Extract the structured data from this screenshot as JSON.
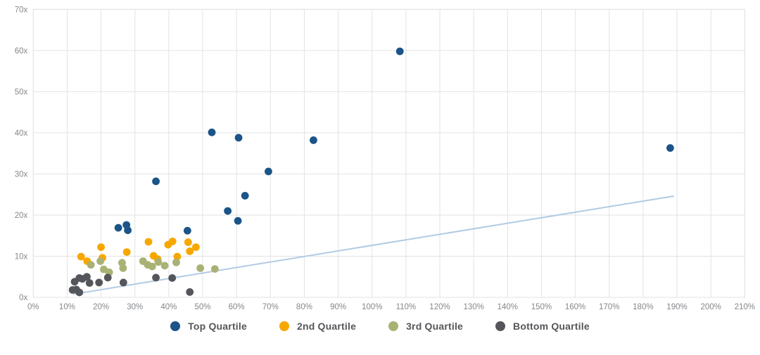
{
  "chart_data": {
    "type": "scatter",
    "title": "",
    "xlabel": "",
    "ylabel": "",
    "grid": true,
    "legend_position": "bottom",
    "x_range": [
      0,
      210
    ],
    "y_range": [
      0,
      70
    ],
    "x_tick_labels": [
      "0%",
      "10%",
      "20%",
      "30%",
      "40%",
      "50%",
      "60%",
      "70%",
      "80%",
      "90%",
      "100%",
      "110%",
      "120%",
      "130%",
      "140%",
      "150%",
      "160%",
      "170%",
      "180%",
      "190%",
      "200%",
      "210%"
    ],
    "y_tick_labels": [
      "0x",
      "10x",
      "20x",
      "30x",
      "40x",
      "50x",
      "60x",
      "70x"
    ],
    "axis_text_color": "#85878a",
    "grid_color": "#e2e3e4",
    "series": [
      {
        "name": "Top Quartile",
        "color": "#1a5488",
        "points": [
          [
            25.1,
            16.9
          ],
          [
            27.5,
            17.6
          ],
          [
            27.9,
            16.3
          ],
          [
            36.2,
            28.2
          ],
          [
            45.5,
            16.2
          ],
          [
            52.7,
            40.1
          ],
          [
            57.4,
            21.0
          ],
          [
            60.4,
            18.6
          ],
          [
            60.6,
            38.8
          ],
          [
            62.5,
            24.7
          ],
          [
            69.4,
            30.6
          ],
          [
            82.7,
            38.2
          ],
          [
            108.2,
            59.8
          ],
          [
            188.0,
            36.3
          ]
        ]
      },
      {
        "name": "2nd Quartile",
        "color": "#f7a700",
        "points": [
          [
            14.1,
            9.9
          ],
          [
            15.9,
            8.8
          ],
          [
            20.0,
            12.2
          ],
          [
            20.4,
            9.6
          ],
          [
            27.6,
            11.0
          ],
          [
            34.0,
            13.5
          ],
          [
            35.5,
            10.1
          ],
          [
            36.7,
            9.3
          ],
          [
            39.8,
            12.8
          ],
          [
            41.1,
            13.6
          ],
          [
            42.5,
            9.9
          ],
          [
            45.7,
            13.4
          ],
          [
            46.2,
            11.2
          ],
          [
            48.0,
            12.2
          ]
        ]
      },
      {
        "name": "3rd Quartile",
        "color": "#a9b274",
        "points": [
          [
            17.0,
            7.9
          ],
          [
            19.8,
            8.8
          ],
          [
            20.8,
            6.8
          ],
          [
            22.4,
            6.1
          ],
          [
            26.2,
            8.4
          ],
          [
            26.5,
            7.1
          ],
          [
            32.4,
            8.8
          ],
          [
            33.8,
            7.9
          ],
          [
            35.1,
            7.5
          ],
          [
            36.9,
            8.6
          ],
          [
            38.8,
            7.7
          ],
          [
            42.2,
            8.5
          ],
          [
            49.3,
            7.1
          ],
          [
            53.6,
            6.9
          ]
        ]
      },
      {
        "name": "Bottom Quartile",
        "color": "#54565b",
        "points": [
          [
            11.6,
            1.8
          ],
          [
            12.2,
            3.8
          ],
          [
            12.7,
            1.9
          ],
          [
            13.6,
            1.2
          ],
          [
            13.6,
            4.7
          ],
          [
            14.5,
            4.5
          ],
          [
            15.8,
            5.0
          ],
          [
            16.6,
            3.5
          ],
          [
            19.4,
            3.6
          ],
          [
            22.0,
            4.8
          ],
          [
            26.6,
            3.6
          ],
          [
            36.2,
            4.8
          ],
          [
            41.0,
            4.7
          ],
          [
            46.2,
            1.3
          ]
        ]
      }
    ],
    "trendline": {
      "color": "#b2cbe4",
      "from": [
        12,
        0.8
      ],
      "to": [
        189,
        24.6
      ]
    }
  }
}
